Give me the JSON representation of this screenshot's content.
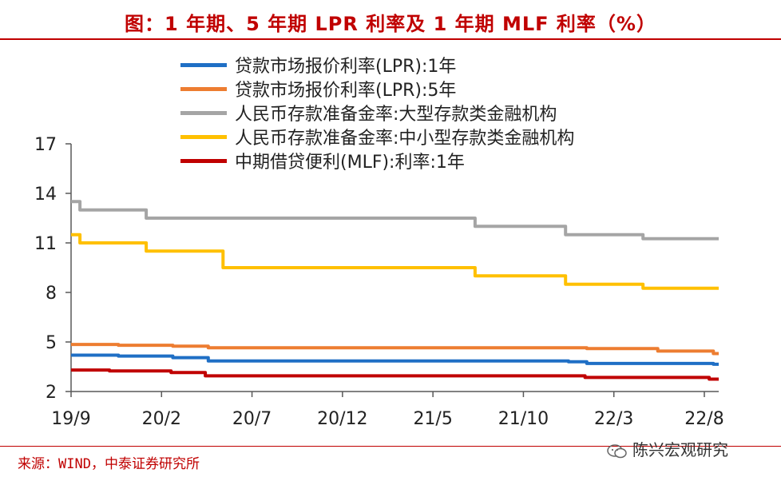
{
  "title": "图：1 年期、5 年期 LPR 利率及 1 年期 MLF 利率（%）",
  "source": "来源：WIND，中泰证券研究所",
  "watermark": "陈兴宏观研究",
  "colors": {
    "lpr1": "#1f6fc5",
    "lpr5": "#ed7d31",
    "rrr_large": "#a5a5a5",
    "rrr_small": "#ffc000",
    "mlf": "#c00000",
    "title": "#c00000"
  },
  "chart_data": {
    "type": "line",
    "title": "图：1 年期、5 年期 LPR 利率及 1 年期 MLF 利率（%）",
    "xlabel": "",
    "ylabel": "",
    "xlim": [
      "2019-09",
      "2022-08"
    ],
    "x_ticks": [
      "19/9",
      "20/2",
      "20/7",
      "20/12",
      "21/5",
      "21/10",
      "22/3",
      "22/8"
    ],
    "ylim": [
      2,
      17
    ],
    "y_ticks": [
      2,
      5,
      8,
      11,
      14,
      17
    ],
    "grid": false,
    "legend": "top-left",
    "series": [
      {
        "name": "贷款市场报价利率(LPR):1年",
        "color": "#1f6fc5",
        "points": [
          [
            "2019-09-01",
            4.2
          ],
          [
            "2019-10-01",
            4.2
          ],
          [
            "2019-11-20",
            4.15
          ],
          [
            "2020-02-20",
            4.05
          ],
          [
            "2020-04-20",
            3.85
          ],
          [
            "2021-12-20",
            3.8
          ],
          [
            "2022-01-20",
            3.7
          ],
          [
            "2022-08-22",
            3.65
          ],
          [
            "2022-08-31",
            3.65
          ]
        ]
      },
      {
        "name": "贷款市场报价利率(LPR):5年",
        "color": "#ed7d31",
        "points": [
          [
            "2019-09-01",
            4.85
          ],
          [
            "2019-11-20",
            4.8
          ],
          [
            "2020-02-20",
            4.75
          ],
          [
            "2020-04-20",
            4.65
          ],
          [
            "2022-01-20",
            4.6
          ],
          [
            "2022-05-20",
            4.45
          ],
          [
            "2022-08-22",
            4.3
          ],
          [
            "2022-08-31",
            4.3
          ]
        ]
      },
      {
        "name": "人民币存款准备金率:大型存款类金融机构",
        "color": "#a5a5a5",
        "points": [
          [
            "2019-09-01",
            13.5
          ],
          [
            "2019-09-16",
            13.0
          ],
          [
            "2020-01-06",
            12.5
          ],
          [
            "2021-07-15",
            12.0
          ],
          [
            "2021-12-15",
            11.5
          ],
          [
            "2022-04-25",
            11.25
          ],
          [
            "2022-08-31",
            11.25
          ]
        ]
      },
      {
        "name": "人民币存款准备金率:中小型存款类金融机构",
        "color": "#ffc000",
        "points": [
          [
            "2019-09-01",
            11.5
          ],
          [
            "2019-09-16",
            11.0
          ],
          [
            "2020-01-06",
            10.5
          ],
          [
            "2020-05-15",
            9.5
          ],
          [
            "2021-07-15",
            9.0
          ],
          [
            "2021-12-15",
            8.5
          ],
          [
            "2022-04-25",
            8.25
          ],
          [
            "2022-08-31",
            8.25
          ]
        ]
      },
      {
        "name": "中期借贷便利(MLF):利率:1年",
        "color": "#c00000",
        "points": [
          [
            "2019-09-01",
            3.3
          ],
          [
            "2019-11-05",
            3.25
          ],
          [
            "2020-02-17",
            3.15
          ],
          [
            "2020-04-15",
            2.95
          ],
          [
            "2022-01-17",
            2.85
          ],
          [
            "2022-08-15",
            2.75
          ],
          [
            "2022-08-31",
            2.75
          ]
        ]
      }
    ]
  }
}
